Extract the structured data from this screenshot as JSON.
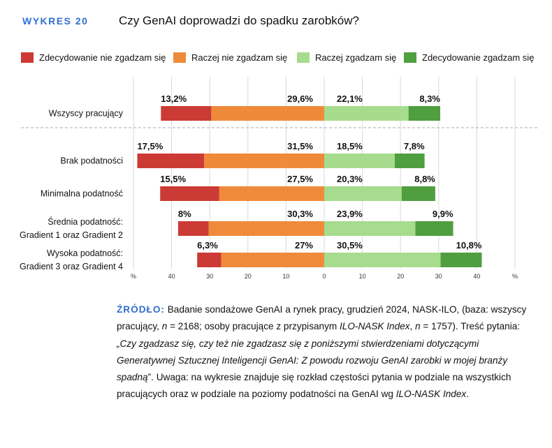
{
  "figure": {
    "number": "WYKRES 20",
    "title": "Czy GenAI doprowadzi do spadku zarobków?"
  },
  "colors": {
    "strongly_disagree": "#cc3a35",
    "disagree": "#ef8a3a",
    "agree": "#a7db8e",
    "strongly_agree": "#4f9e3f",
    "title_accent": "#2f6fd0"
  },
  "chart_data": {
    "type": "bar",
    "orientation": "horizontal-diverging-stacked",
    "categories": [
      [
        "Wszyscy pracujący"
      ],
      [
        "Brak podatności"
      ],
      [
        "Minimalna podatność"
      ],
      [
        "Średnia podatność:",
        "Gradient 1 oraz Gradient 2"
      ],
      [
        "Wysoka podatność:",
        "Gradient 3 oraz Gradient 4"
      ]
    ],
    "series": [
      {
        "name": "Zdecydowanie nie zgadzam się",
        "side": "negative",
        "values": [
          13.2,
          17.5,
          15.5,
          8,
          6.3
        ],
        "labels": [
          "13,2%",
          "17,5%",
          "15,5%",
          "8%",
          "6,3%"
        ]
      },
      {
        "name": "Raczej nie zgadzam się",
        "side": "negative",
        "values": [
          29.6,
          31.5,
          27.5,
          30.3,
          27
        ],
        "labels": [
          "29,6%",
          "31,5%",
          "27,5%",
          "30,3%",
          "27%"
        ]
      },
      {
        "name": "Raczej zgadzam się",
        "side": "positive",
        "values": [
          22.1,
          18.5,
          20.3,
          23.9,
          30.5
        ],
        "labels": [
          "22,1%",
          "18,5%",
          "20,3%",
          "23,9%",
          "30,5%"
        ]
      },
      {
        "name": "Zdecydowanie zgadzam się",
        "side": "positive",
        "values": [
          8.3,
          7.8,
          8.8,
          9.9,
          10.8
        ],
        "labels": [
          "8,3%",
          "7,8%",
          "8,8%",
          "9,9%",
          "10,8%"
        ]
      }
    ],
    "xlim": [
      -50,
      50
    ],
    "xticks": [
      -50,
      -40,
      -30,
      -20,
      -10,
      0,
      10,
      20,
      30,
      40,
      50
    ],
    "xtick_labels": [
      "%",
      "40",
      "30",
      "20",
      "10",
      "0",
      "10",
      "20",
      "30",
      "40",
      "%"
    ],
    "grid": true,
    "legend": "top"
  },
  "source": {
    "label": "ŹRÓDŁO:",
    "text1": " Badanie sondażowe GenAI a rynek pracy, grudzień 2024, NASK-ILO, (baza: wszyscy pracujący, ",
    "n_label": "n",
    "text2": " = 2168; osoby pracujące z przypisanym ",
    "index_name": "ILO-NASK Index",
    "text3": ", ",
    "n_label2": "n",
    "text4": " = 1757). Treść pytania: ",
    "question": "„Czy zgadzasz się, czy też nie zgadzasz się z poniższymi stwierdzeniami dotyczącymi Generatywnej Sztucznej Inteligencji GenAI: Z powodu rozwoju GenAI zarobki w mojej branży spadną",
    "text5": "”. Uwaga: na wykresie znajduje się rozkład częstości pytania w podziale na wszystkich pracujących oraz w podziale na poziomy podatności na GenAI wg ",
    "index_name2": "ILO-NASK Index",
    "text6": "."
  }
}
